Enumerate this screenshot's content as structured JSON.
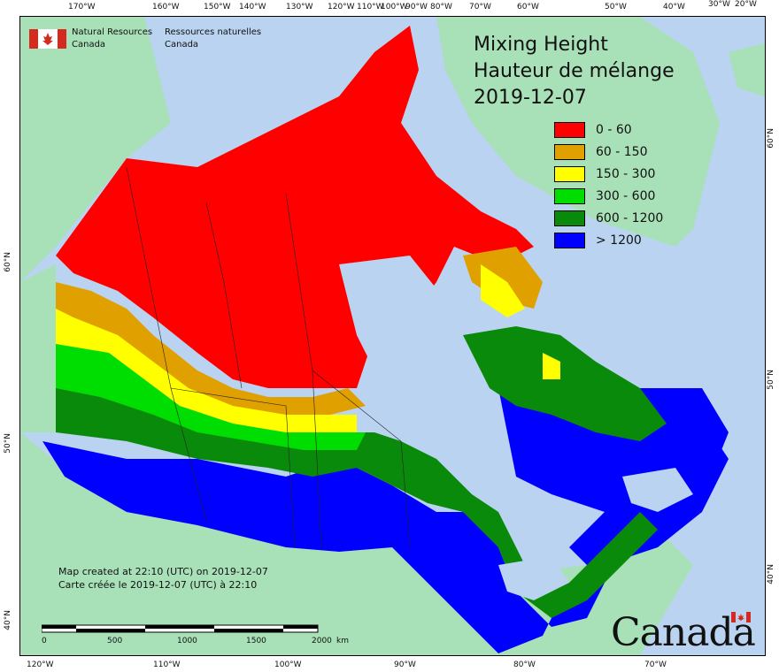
{
  "title": {
    "line1": "Mixing Height",
    "line2": "Hauteur de mélange",
    "date": "2019-12-07"
  },
  "legend": [
    {
      "label": "0 - 60",
      "color": "#ff0000"
    },
    {
      "label": "60 - 150",
      "color": "#e0a000"
    },
    {
      "label": "150 - 300",
      "color": "#ffff00"
    },
    {
      "label": "300 - 600",
      "color": "#00dd00"
    },
    {
      "label": "600 - 1200",
      "color": "#0a8a0a"
    },
    {
      "label": "> 1200",
      "color": "#0000ff"
    }
  ],
  "agency": {
    "en_line1": "Natural Resources",
    "en_line2": "Canada",
    "fr_line1": "Ressources naturelles",
    "fr_line2": "Canada"
  },
  "created": {
    "en": "Map created at 22:10 (UTC) on 2019-12-07",
    "fr": "Carte créée le 2019-12-07 (UTC) à 22:10"
  },
  "scale": {
    "ticks": [
      "0",
      "500",
      "1000",
      "1500",
      "2000"
    ],
    "unit": "km"
  },
  "wordmark": "Canada",
  "graticule": {
    "top": [
      "170°W",
      "160°W",
      "150°W",
      "140°W",
      "130°W",
      "120°W",
      "110°W",
      "100°W",
      "90°W",
      "80°W",
      "70°W",
      "60°W",
      "50°W",
      "40°W",
      "30°W",
      "20°W"
    ],
    "bottom": [
      "120°W",
      "110°W",
      "100°W",
      "90°W",
      "80°W",
      "70°W"
    ],
    "left": [
      "60°N",
      "50°N",
      "40°N"
    ],
    "right": [
      "60°N",
      "50°N",
      "40°N"
    ]
  },
  "colors": {
    "ocean": "#b9d3f0",
    "land_foreign": "#a8e0b8",
    "water": "#b9d3f0"
  }
}
